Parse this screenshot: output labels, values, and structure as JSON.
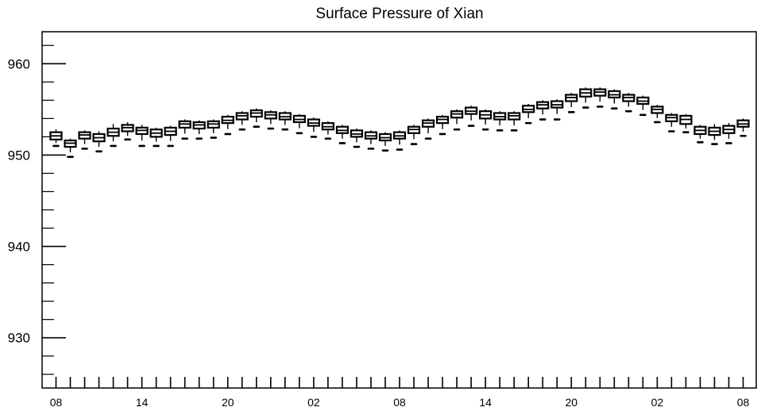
{
  "chart_data": {
    "type": "box",
    "title": "Surface Pressure of Xian",
    "xlabel": "",
    "ylabel": "",
    "ylim": [
      924.5,
      963.5
    ],
    "y_ticks": [
      "930",
      "940",
      "950",
      "960"
    ],
    "x_ticks": [
      "08",
      "14",
      "20",
      "02",
      "08",
      "14",
      "20",
      "02",
      "08"
    ],
    "x_tick_hours": [
      0,
      6,
      12,
      18,
      24,
      30,
      36,
      42,
      48
    ],
    "grid": false,
    "series": [
      {
        "boxes": [
          {
            "hour": 0,
            "min": 951.0,
            "q1": 951.7,
            "median": 952.1,
            "q3": 952.5,
            "max": 952.8
          },
          {
            "hour": 1,
            "min": 949.8,
            "q1": 950.9,
            "median": 951.3,
            "q3": 951.6,
            "max": 951.8
          },
          {
            "hour": 2,
            "min": 950.7,
            "q1": 951.8,
            "median": 952.2,
            "q3": 952.5,
            "max": 952.7
          },
          {
            "hour": 3,
            "min": 950.4,
            "q1": 951.5,
            "median": 951.9,
            "q3": 952.3,
            "max": 952.6
          },
          {
            "hour": 4,
            "min": 951.0,
            "q1": 952.1,
            "median": 952.5,
            "q3": 952.9,
            "max": 953.4
          },
          {
            "hour": 5,
            "min": 951.7,
            "q1": 952.6,
            "median": 953.0,
            "q3": 953.3,
            "max": 953.6
          },
          {
            "hour": 6,
            "min": 951.0,
            "q1": 952.3,
            "median": 952.7,
            "q3": 953.0,
            "max": 953.3
          },
          {
            "hour": 7,
            "min": 951.0,
            "q1": 952.0,
            "median": 952.4,
            "q3": 952.8,
            "max": 953.0
          },
          {
            "hour": 8,
            "min": 951.0,
            "q1": 952.2,
            "median": 952.6,
            "q3": 953.0,
            "max": 953.2
          },
          {
            "hour": 9,
            "min": 951.8,
            "q1": 953.0,
            "median": 953.4,
            "q3": 953.7,
            "max": 953.9
          },
          {
            "hour": 10,
            "min": 951.8,
            "q1": 952.9,
            "median": 953.3,
            "q3": 953.6,
            "max": 953.8
          },
          {
            "hour": 11,
            "min": 951.9,
            "q1": 953.0,
            "median": 953.4,
            "q3": 953.7,
            "max": 953.9
          },
          {
            "hour": 12,
            "min": 952.3,
            "q1": 953.5,
            "median": 953.8,
            "q3": 954.2,
            "max": 954.4
          },
          {
            "hour": 13,
            "min": 952.8,
            "q1": 953.9,
            "median": 954.3,
            "q3": 954.6,
            "max": 954.8
          },
          {
            "hour": 14,
            "min": 953.1,
            "q1": 954.2,
            "median": 954.6,
            "q3": 954.9,
            "max": 955.1
          },
          {
            "hour": 15,
            "min": 952.9,
            "q1": 954.0,
            "median": 954.4,
            "q3": 954.7,
            "max": 954.9
          },
          {
            "hour": 16,
            "min": 952.8,
            "q1": 953.9,
            "median": 954.2,
            "q3": 954.6,
            "max": 954.8
          },
          {
            "hour": 17,
            "min": 952.4,
            "q1": 953.6,
            "median": 953.9,
            "q3": 954.3,
            "max": 954.5
          },
          {
            "hour": 18,
            "min": 952.0,
            "q1": 953.2,
            "median": 953.5,
            "q3": 953.9,
            "max": 954.1
          },
          {
            "hour": 19,
            "min": 951.8,
            "q1": 952.8,
            "median": 953.1,
            "q3": 953.5,
            "max": 953.7
          },
          {
            "hour": 20,
            "min": 951.3,
            "q1": 952.4,
            "median": 952.7,
            "q3": 953.1,
            "max": 953.3
          },
          {
            "hour": 21,
            "min": 950.9,
            "q1": 952.0,
            "median": 952.3,
            "q3": 952.7,
            "max": 952.9
          },
          {
            "hour": 22,
            "min": 950.7,
            "q1": 951.8,
            "median": 952.1,
            "q3": 952.5,
            "max": 952.7
          },
          {
            "hour": 23,
            "min": 950.5,
            "q1": 951.6,
            "median": 951.9,
            "q3": 952.3,
            "max": 952.5
          },
          {
            "hour": 24,
            "min": 950.6,
            "q1": 951.8,
            "median": 952.1,
            "q3": 952.5,
            "max": 952.7
          },
          {
            "hour": 25,
            "min": 951.2,
            "q1": 952.4,
            "median": 952.8,
            "q3": 953.1,
            "max": 953.3
          },
          {
            "hour": 26,
            "min": 951.8,
            "q1": 953.1,
            "median": 953.5,
            "q3": 953.8,
            "max": 954.0
          },
          {
            "hour": 27,
            "min": 952.3,
            "q1": 953.5,
            "median": 953.9,
            "q3": 954.2,
            "max": 954.4
          },
          {
            "hour": 28,
            "min": 952.8,
            "q1": 954.1,
            "median": 954.5,
            "q3": 954.8,
            "max": 955.0
          },
          {
            "hour": 29,
            "min": 953.2,
            "q1": 954.5,
            "median": 954.8,
            "q3": 955.2,
            "max": 955.4
          },
          {
            "hour": 30,
            "min": 952.8,
            "q1": 954.0,
            "median": 954.4,
            "q3": 954.8,
            "max": 955.0
          },
          {
            "hour": 31,
            "min": 952.7,
            "q1": 953.9,
            "median": 954.2,
            "q3": 954.6,
            "max": 954.8
          },
          {
            "hour": 32,
            "min": 952.7,
            "q1": 953.9,
            "median": 954.3,
            "q3": 954.6,
            "max": 954.8
          },
          {
            "hour": 33,
            "min": 953.5,
            "q1": 954.7,
            "median": 955.0,
            "q3": 955.4,
            "max": 955.6
          },
          {
            "hour": 34,
            "min": 953.9,
            "q1": 955.1,
            "median": 955.5,
            "q3": 955.8,
            "max": 956.0
          },
          {
            "hour": 35,
            "min": 953.9,
            "q1": 955.2,
            "median": 955.5,
            "q3": 955.9,
            "max": 956.1
          },
          {
            "hour": 36,
            "min": 954.7,
            "q1": 955.9,
            "median": 956.3,
            "q3": 956.6,
            "max": 956.8
          },
          {
            "hour": 37,
            "min": 955.2,
            "q1": 956.4,
            "median": 956.8,
            "q3": 957.2,
            "max": 957.4
          },
          {
            "hour": 38,
            "min": 955.3,
            "q1": 956.5,
            "median": 956.9,
            "q3": 957.2,
            "max": 957.4
          },
          {
            "hour": 39,
            "min": 955.1,
            "q1": 956.3,
            "median": 956.6,
            "q3": 957.0,
            "max": 957.2
          },
          {
            "hour": 40,
            "min": 954.8,
            "q1": 955.9,
            "median": 956.3,
            "q3": 956.6,
            "max": 956.8
          },
          {
            "hour": 41,
            "min": 954.4,
            "q1": 955.6,
            "median": 955.9,
            "q3": 956.3,
            "max": 956.5
          },
          {
            "hour": 42,
            "min": 953.6,
            "q1": 954.6,
            "median": 955.0,
            "q3": 955.3,
            "max": 955.5
          },
          {
            "hour": 43,
            "min": 952.6,
            "q1": 953.7,
            "median": 954.1,
            "q3": 954.4,
            "max": 954.6
          },
          {
            "hour": 44,
            "min": 952.5,
            "q1": 953.4,
            "median": 953.9,
            "q3": 954.3,
            "max": 954.5
          },
          {
            "hour": 45,
            "min": 951.4,
            "q1": 952.3,
            "median": 952.7,
            "q3": 953.1,
            "max": 953.3
          },
          {
            "hour": 46,
            "min": 951.2,
            "q1": 952.2,
            "median": 952.6,
            "q3": 953.0,
            "max": 953.4
          },
          {
            "hour": 47,
            "min": 951.3,
            "q1": 952.4,
            "median": 952.8,
            "q3": 953.2,
            "max": 953.5
          },
          {
            "hour": 48,
            "min": 952.1,
            "q1": 953.1,
            "median": 953.4,
            "q3": 953.8,
            "max": 954.0
          }
        ]
      }
    ]
  }
}
